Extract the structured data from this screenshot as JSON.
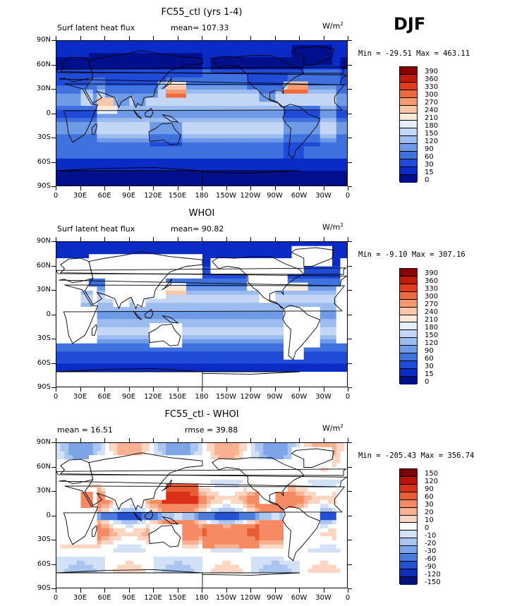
{
  "season": "DJF",
  "panels": [
    {
      "title": "FC55_ctl (yrs 1-4)",
      "left_label": "Surf latent heat flux",
      "stat1": "mean= 107.33",
      "stat2": "",
      "units": "W/m",
      "units_sup": "2",
      "minmax": "Min = -29.51 Max = 463.11",
      "colorbar": {
        "labels": [
          "390",
          "360",
          "330",
          "300",
          "270",
          "240",
          "210",
          "180",
          "150",
          "120",
          "90",
          "60",
          "30",
          "15",
          "0"
        ],
        "colors": [
          "#8b0000",
          "#c41a0a",
          "#e23c1c",
          "#f06a40",
          "#f79a72",
          "#fbc7a8",
          "#fde9d8",
          "#e6eefb",
          "#c3d6f5",
          "#9cbcef",
          "#6f9be6",
          "#3f72df",
          "#1f4bd8",
          "#0a2bc6",
          "#000f8c"
        ]
      },
      "map_style": "model"
    },
    {
      "title": "WHOI",
      "left_label": "Surf latent heat flux",
      "stat1": "mean=  90.82",
      "stat2": "",
      "units": "W/m",
      "units_sup": "2",
      "minmax": "Min =  -9.10 Max = 307.16",
      "colorbar": {
        "labels": [
          "390",
          "360",
          "330",
          "300",
          "270",
          "240",
          "210",
          "180",
          "150",
          "120",
          "90",
          "60",
          "30",
          "15",
          "0"
        ],
        "colors": [
          "#8b0000",
          "#c41a0a",
          "#e23c1c",
          "#f06a40",
          "#f79a72",
          "#fbc7a8",
          "#fde9d8",
          "#e6eefb",
          "#c3d6f5",
          "#9cbcef",
          "#6f9be6",
          "#3f72df",
          "#1f4bd8",
          "#0a2bc6",
          "#000f8c"
        ]
      },
      "map_style": "obs"
    },
    {
      "title": "FC55_ctl - WHOI",
      "left_label": "mean =  16.51",
      "stat1": "",
      "stat2": "rmse =  39.88",
      "units": "W/m",
      "units_sup": "2",
      "minmax": "Min = -205.43 Max = 356.74",
      "colorbar": {
        "labels": [
          "150",
          "120",
          "90",
          "60",
          "30",
          "20",
          "10",
          "0",
          "-10",
          "-20",
          "-30",
          "-60",
          "-90",
          "-120",
          "-150"
        ],
        "colors": [
          "#7a0000",
          "#b81408",
          "#da3118",
          "#ea5c36",
          "#f58a63",
          "#f9b192",
          "#fcd6c3",
          "#ffffff",
          "#d3e1f6",
          "#aac5ef",
          "#7da4e6",
          "#4b7bdc",
          "#2451d2",
          "#0f2fb8",
          "#00127a"
        ]
      },
      "map_style": "diff"
    }
  ],
  "lat_ticks": [
    "90N",
    "60N",
    "30N",
    "0",
    "30S",
    "60S",
    "90S"
  ],
  "lon_ticks": [
    "0",
    "30E",
    "60E",
    "90E",
    "120E",
    "150E",
    "180",
    "150W",
    "120W",
    "90W",
    "60W",
    "30W",
    "0"
  ]
}
